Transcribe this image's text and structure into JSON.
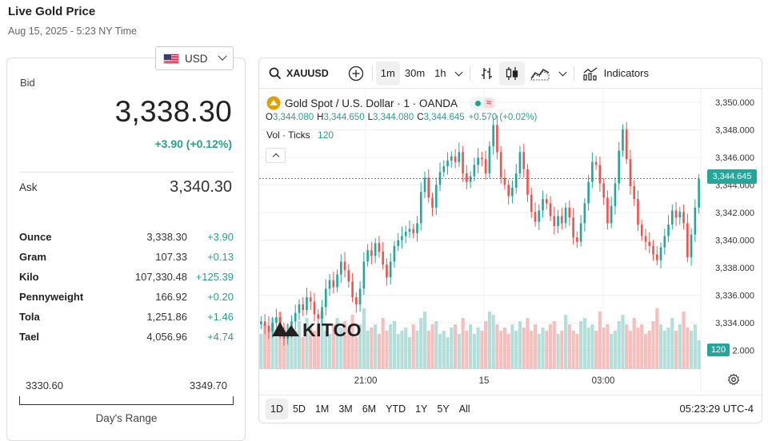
{
  "page": {
    "title": "Live Gold Price",
    "subtitle": "Aug 15, 2025 - 5:23 NY Time"
  },
  "currency": {
    "selected": "USD",
    "flag_icon": "us-flag-icon"
  },
  "bid": {
    "label": "Bid",
    "value": "3,338.30",
    "change": "+3.90 (+0.12%)"
  },
  "ask": {
    "label": "Ask",
    "value": "3,340.30"
  },
  "weights": [
    {
      "unit": "Ounce",
      "price": "3,338.30",
      "change": "+3.90"
    },
    {
      "unit": "Gram",
      "price": "107.33",
      "change": "+0.13"
    },
    {
      "unit": "Kilo",
      "price": "107,330.48",
      "change": "+125.39"
    },
    {
      "unit": "Pennyweight",
      "price": "166.92",
      "change": "+0.20"
    },
    {
      "unit": "Tola",
      "price": "1,251.86",
      "change": "+1.46"
    },
    {
      "unit": "Tael",
      "price": "4,056.96",
      "change": "+4.74"
    }
  ],
  "range": {
    "low": "3330.60",
    "high": "3349.70",
    "label": "Day's Range"
  },
  "toolbar": {
    "symbol": "XAUUSD",
    "intervals": [
      "1m",
      "30m",
      "1h"
    ],
    "active_interval": "1m",
    "indicators_label": "Indicators"
  },
  "chart_header": {
    "name": "Gold Spot / U.S. Dollar · 1 · OANDA",
    "ohlc": [
      {
        "k": "O",
        "v": "3,344.080"
      },
      {
        "k": "H",
        "v": "3,344.650"
      },
      {
        "k": "L",
        "v": "3,344.080"
      },
      {
        "k": "C",
        "v": "3,344.645"
      }
    ],
    "change": "+0.570 (+0.02%)",
    "vol_label": "Vol · Ticks",
    "vol_value": "120"
  },
  "watermark": "KITCO",
  "ranges": [
    "1D",
    "5D",
    "1M",
    "3M",
    "6M",
    "YTD",
    "1Y",
    "5Y",
    "All"
  ],
  "active_range": "1D",
  "clock": "05:23:29 UTC-4",
  "colors": {
    "up": "#26a69a",
    "down": "#ef5350",
    "accent": "#2a9d8f"
  },
  "chart_data": {
    "type": "candlestick",
    "price_ticks": [
      "3,350.000",
      "3,348.000",
      "3,346.000",
      "3,344.000",
      "3,342.000",
      "3,340.000",
      "3,338.000",
      "3,336.000",
      "3,334.000",
      "2.000"
    ],
    "ylim": [
      3332.0,
      3350.0
    ],
    "x_ticks": [
      "21:00",
      "15",
      "03:00"
    ],
    "last_price": "3,344.645",
    "last_volume": "120",
    "close_series": [
      3334.6,
      3334.3,
      3333.9,
      3334.5,
      3334.9,
      3334.0,
      3333.4,
      3333.8,
      3334.6,
      3335.2,
      3335.8,
      3335.4,
      3336.3,
      3336.0,
      3335.1,
      3334.8,
      3335.6,
      3336.9,
      3337.5,
      3337.0,
      3337.9,
      3338.8,
      3338.2,
      3337.4,
      3336.3,
      3335.8,
      3336.9,
      3338.8,
      3339.6,
      3339.2,
      3340.1,
      3339.5,
      3338.6,
      3337.7,
      3338.8,
      3339.9,
      3340.3,
      3340.6,
      3340.9,
      3341.1,
      3340.8,
      3341.5,
      3343.7,
      3344.7,
      3343.3,
      3342.6,
      3344.2,
      3345.1,
      3345.5,
      3345.9,
      3346.2,
      3345.8,
      3346.5,
      3345.0,
      3344.4,
      3344.8,
      3345.6,
      3346.1,
      3346.0,
      3345.0,
      3346.9,
      3348.4,
      3346.5,
      3344.7,
      3344.2,
      3343.4,
      3344.0,
      3345.0,
      3346.5,
      3345.3,
      3343.5,
      3342.3,
      3341.6,
      3342.4,
      3343.2,
      3342.9,
      3342.0,
      3341.3,
      3342.0,
      3341.5,
      3342.6,
      3341.9,
      3340.5,
      3340.2,
      3341.5,
      3342.9,
      3344.4,
      3345.8,
      3345.6,
      3344.3,
      3343.3,
      3341.5,
      3342.7,
      3344.3,
      3346.6,
      3348.1,
      3346.0,
      3344.1,
      3343.2,
      3341.4,
      3340.6,
      3340.2,
      3339.9,
      3339.3,
      3338.9,
      3339.8,
      3340.6,
      3341.4,
      3342.4,
      3341.9,
      3342.3,
      3341.5,
      3339.1,
      3340.7,
      3342.6,
      3344.6
    ],
    "volume_series": [
      0.55,
      0.7,
      0.6,
      0.8,
      0.5,
      0.9,
      0.65,
      0.7,
      0.55,
      0.6,
      0.75,
      0.5,
      0.8,
      0.65,
      0.6,
      0.7,
      0.9,
      0.6,
      0.55,
      0.7,
      0.8,
      0.65,
      0.75,
      0.6,
      0.85,
      0.5,
      0.7,
      0.95,
      0.6,
      0.65,
      0.7,
      0.55,
      0.8,
      0.6,
      0.7,
      0.75,
      0.55,
      0.6,
      0.65,
      0.5,
      0.7,
      0.6,
      0.8,
      0.9,
      0.6,
      0.7,
      0.75,
      0.55,
      0.6,
      0.5,
      0.65,
      0.7,
      0.55,
      0.8,
      0.6,
      0.7,
      0.55,
      0.65,
      0.6,
      0.75,
      0.9,
      0.85,
      0.7,
      0.6,
      0.65,
      0.55,
      0.7,
      0.6,
      0.75,
      0.65,
      0.8,
      0.6,
      0.7,
      0.55,
      0.65,
      0.6,
      0.7,
      0.75,
      0.55,
      0.6,
      0.85,
      0.7,
      0.6,
      0.55,
      0.75,
      0.8,
      0.65,
      0.7,
      0.6,
      0.9,
      0.65,
      0.7,
      0.55,
      0.6,
      0.75,
      0.85,
      0.7,
      0.6,
      0.8,
      0.65,
      0.7,
      0.55,
      0.6,
      0.75,
      0.95,
      0.7,
      0.6,
      0.65,
      0.8,
      0.6,
      0.7,
      0.9,
      0.65,
      0.6,
      0.7,
      0.45
    ]
  }
}
